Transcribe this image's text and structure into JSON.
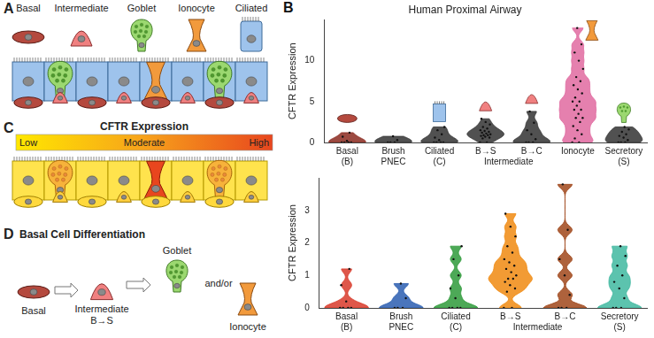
{
  "figure": {
    "panel_A": {
      "letter": "A",
      "cells": [
        "Basal",
        "Intermediate",
        "Goblet",
        "Ionocyte",
        "Ciliated"
      ]
    },
    "panel_B": {
      "letter": "B"
    },
    "panel_C": {
      "letter": "C",
      "title": "CFTR Expression",
      "scale_labels": [
        "Low",
        "Moderate",
        "High"
      ]
    },
    "panel_D": {
      "letter": "D",
      "title": "Basal Cell Differentiation",
      "sequence": [
        {
          "label": "Basal"
        },
        {
          "label": "Intermediate",
          "sublabel": "B→S"
        }
      ],
      "outcomes": [
        "Goblet",
        "Ionocyte"
      ],
      "joiner": "and/or"
    }
  },
  "chart_data": [
    {
      "type": "violin",
      "title": "Human Proximal Airway",
      "y_label": "CFTR Expression",
      "categories": [
        [
          "Basal",
          "(B)"
        ],
        [
          "Brush",
          "PNEC"
        ],
        [
          "Ciliated",
          "(C)"
        ],
        "B→S",
        "B→C",
        "Ionocyte",
        [
          "Secretory",
          "(S)"
        ]
      ],
      "group_label": {
        "text": "Intermediate",
        "spans": [
          "B→S",
          "B→C"
        ]
      },
      "points": [
        [
          0,
          0,
          0,
          0,
          0.2,
          0.7,
          1.2
        ],
        [
          0,
          0,
          0,
          0.3,
          0.75
        ],
        [
          0,
          0,
          0,
          0,
          0.3,
          0.6,
          1.0,
          1.5,
          1.9
        ],
        [
          0,
          0,
          0.5,
          0.6,
          0.7,
          0.8,
          0.9,
          0.9,
          1.0,
          1.1,
          1.2,
          1.3,
          1.4,
          1.5,
          1.7,
          1.9,
          2.2,
          2.5,
          2.9
        ],
        [
          0,
          0,
          0,
          0.4,
          1.0,
          1.5,
          2.4,
          3.8
        ],
        [
          0,
          0,
          0.5,
          1,
          1.5,
          2,
          2.5,
          3,
          3,
          3.5,
          4,
          4,
          4.5,
          5,
          5,
          5.5,
          6,
          6.5,
          7,
          7.5,
          8,
          9,
          10,
          11,
          12,
          14
        ],
        [
          0,
          0,
          0,
          0.3,
          0.6,
          0.8,
          1.0,
          1.3,
          1.6,
          1.9
        ]
      ],
      "colors": [
        "#8b2a20",
        "#333333",
        "#333333",
        "#333333",
        "#333333",
        "#e06aa0",
        "#333333"
      ],
      "ylim": [
        0,
        15
      ],
      "yticks": [
        0,
        5,
        10
      ],
      "grid": false
    },
    {
      "type": "violin",
      "y_label": "CFTR Expression",
      "categories": [
        [
          "Basal",
          "(B)"
        ],
        [
          "Brush",
          "PNEC"
        ],
        [
          "Ciliated",
          "(C)"
        ],
        "B→S",
        "B→C",
        [
          "Secretory",
          "(S)"
        ]
      ],
      "group_label": {
        "text": "Intermediate",
        "spans": [
          "B→S",
          "B→C"
        ]
      },
      "points": [
        [
          0,
          0,
          0,
          0,
          0.2,
          0.7,
          1.2
        ],
        [
          0,
          0,
          0,
          0.3,
          0.75
        ],
        [
          0,
          0,
          0,
          0,
          0.3,
          0.6,
          1.0,
          1.5,
          1.9
        ],
        [
          0,
          0,
          0.5,
          0.6,
          0.7,
          0.8,
          0.9,
          0.9,
          1.0,
          1.1,
          1.2,
          1.3,
          1.4,
          1.5,
          1.7,
          1.9,
          2.2,
          2.5,
          2.9
        ],
        [
          0,
          0,
          0,
          0.4,
          1.0,
          1.5,
          2.4,
          3.8
        ],
        [
          0,
          0,
          0,
          0.3,
          0.6,
          0.8,
          1.0,
          1.3,
          1.6,
          1.9
        ]
      ],
      "colors": [
        "#d83a2a",
        "#2a5db0",
        "#2e9a3a",
        "#f08a10",
        "#a0461a",
        "#3fb8a0"
      ],
      "ylim": [
        0,
        4
      ],
      "yticks": [
        0,
        1,
        2,
        3
      ],
      "grid": false
    }
  ]
}
